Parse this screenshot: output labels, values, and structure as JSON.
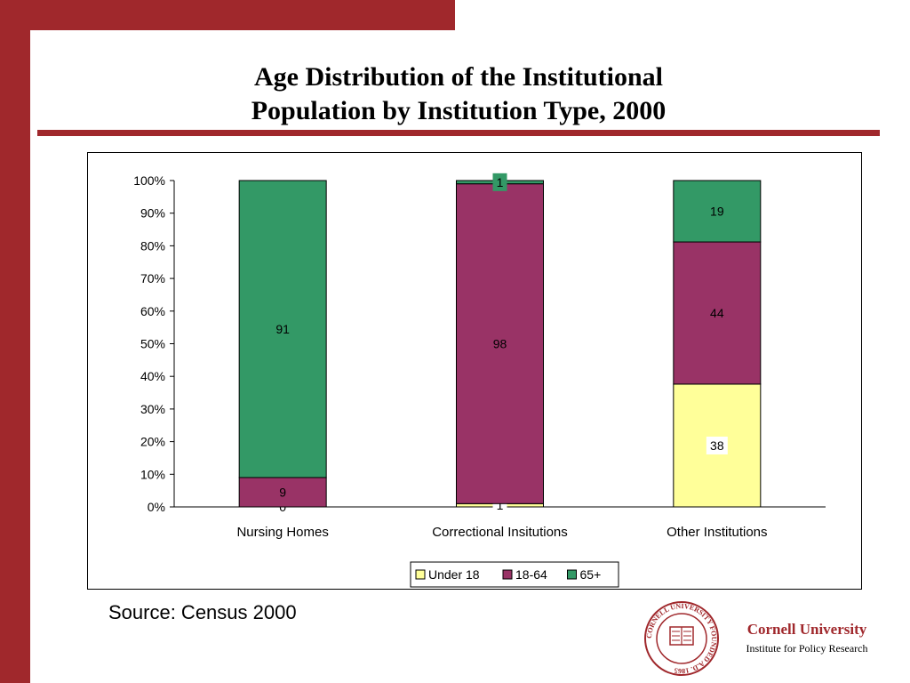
{
  "slide": {
    "title_line1": "Age Distribution of the Institutional",
    "title_line2": "Population by Institution Type, 2000",
    "source": "Source: Census 2000",
    "accent_color": "#a0282c"
  },
  "logo": {
    "name": "Cornell University",
    "subtitle": "Institute for Policy Research",
    "seal_text": "CORNELL UNIVERSITY FOUNDED A.D. 1865"
  },
  "chart_data": {
    "type": "bar",
    "stacked": "percent",
    "categories": [
      "Nursing Homes",
      "Correctional Insitutions",
      "Other Institutions"
    ],
    "series": [
      {
        "name": "Under 18",
        "color": "#ffff99",
        "values": [
          0,
          1,
          38
        ]
      },
      {
        "name": "18-64",
        "color": "#993366",
        "values": [
          9,
          98,
          44
        ]
      },
      {
        "name": "65+",
        "color": "#339966",
        "values": [
          91,
          1,
          19
        ]
      }
    ],
    "y_ticks": [
      "0%",
      "10%",
      "20%",
      "30%",
      "40%",
      "50%",
      "60%",
      "70%",
      "80%",
      "90%",
      "100%"
    ],
    "ylim": [
      0,
      100
    ],
    "legend_position": "bottom"
  }
}
